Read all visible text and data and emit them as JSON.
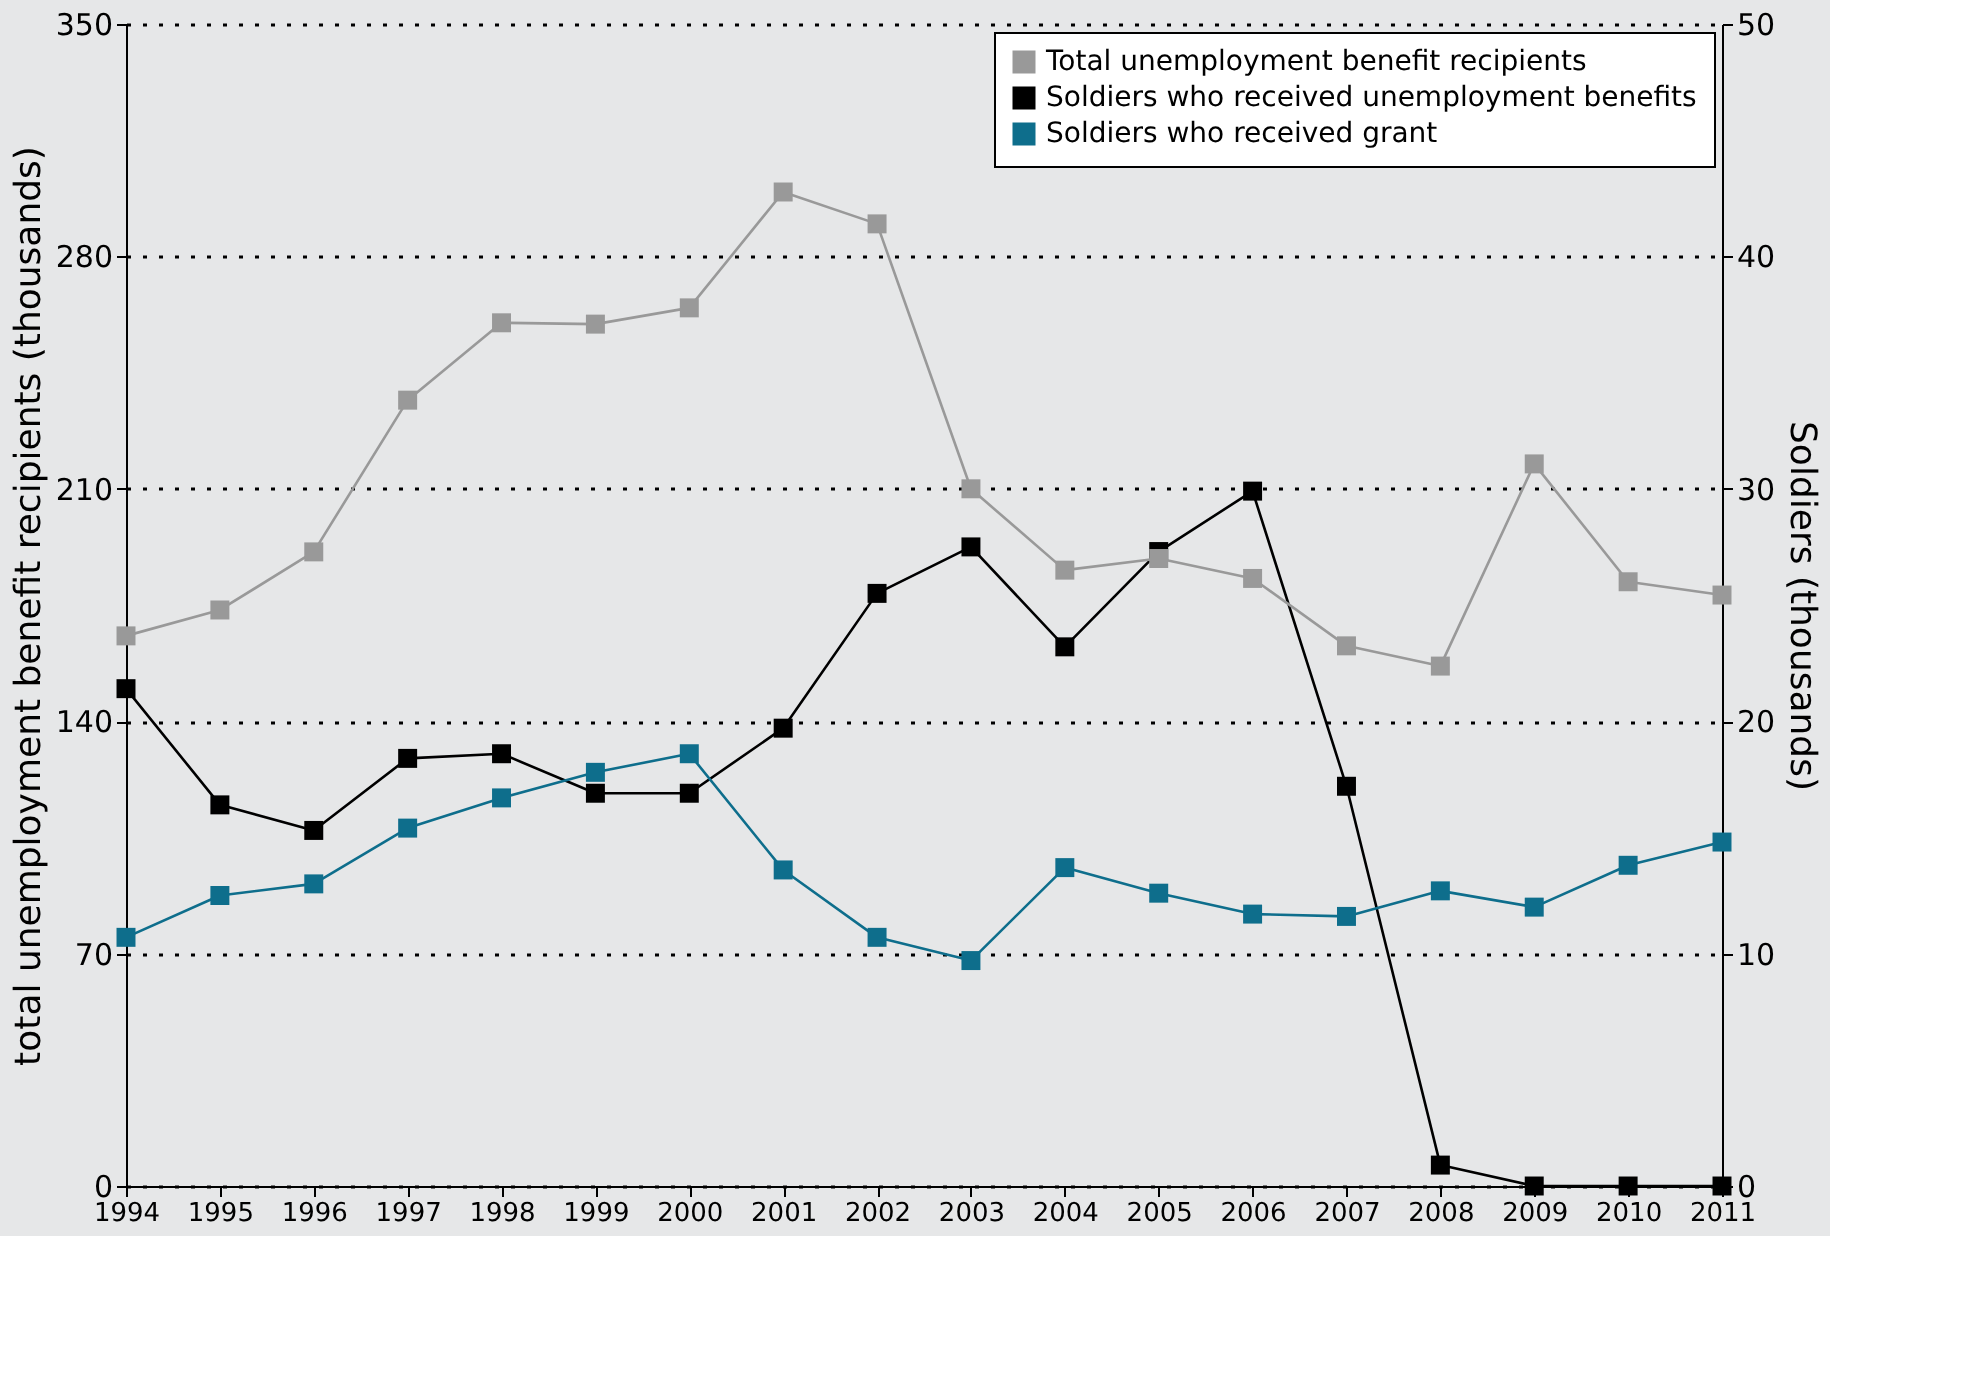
{
  "chart_data": {
    "type": "line",
    "categories": [
      "1994",
      "1995",
      "1996",
      "1997",
      "1998",
      "1999",
      "2000",
      "2001",
      "2002",
      "2003",
      "2004",
      "2005",
      "2006",
      "2007",
      "2008",
      "2009",
      "2010",
      "2011"
    ],
    "ylabel": "total unemployment benefit recipients (thousands)",
    "y2label": "Soldiers (thousands)",
    "ylim": [
      0,
      350
    ],
    "yticks": [
      0,
      70,
      140,
      210,
      280,
      350
    ],
    "y2lim": [
      0,
      50
    ],
    "y2ticks": [
      0,
      10,
      20,
      30,
      40,
      50
    ],
    "grid": "y",
    "legend": "top right",
    "marker": "square",
    "line_style": "solid",
    "series": [
      {
        "name": "Total unemployment benefit recipients",
        "color": "#999999",
        "values": [
          165.7,
          173.5,
          191,
          236.7,
          260,
          259.6,
          264.5,
          299.4,
          289.8,
          210,
          185.5,
          189,
          183,
          162.7,
          156.6,
          217.5,
          182,
          178
        ]
      },
      {
        "name": "Soldiers who received unemployment benefits",
        "color": "#000000",
        "axis": "y2",
        "values": [
          21.4,
          16.4,
          15.3,
          18.4,
          18.6,
          16.9,
          16.9,
          19.7,
          25.5,
          27.5,
          23.2,
          27.3,
          29.9,
          17.2,
          0.9,
          0,
          0,
          0
        ]
      },
      {
        "name": "Soldiers who received grant",
        "color": "#0e6e8c",
        "axis": "y2",
        "values": [
          10.7,
          12.5,
          13.0,
          15.4,
          16.7,
          17.8,
          18.6,
          13.6,
          10.7,
          9.7,
          13.7,
          12.6,
          11.7,
          11.6,
          12.7,
          12.0,
          13.8,
          14.8
        ]
      }
    ]
  }
}
